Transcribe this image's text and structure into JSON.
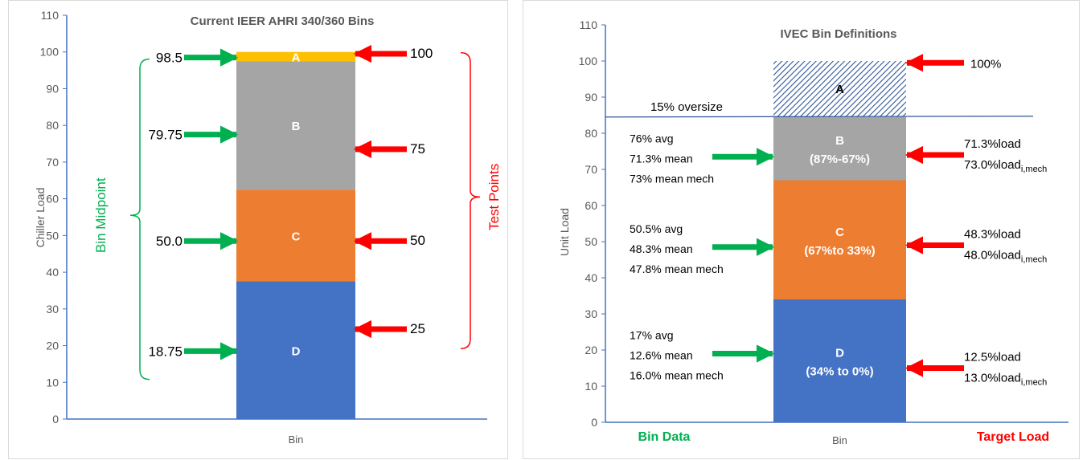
{
  "chart_data": [
    {
      "type": "bar",
      "title": "Current IEER AHRI 340/360 Bins",
      "xlabel": "Bin",
      "ylabel": "Chiller Load",
      "ylim": [
        0,
        110
      ],
      "yticks": [
        "0",
        "10",
        "20",
        "30",
        "40",
        "50",
        "60",
        "70",
        "80",
        "90",
        "100",
        "110"
      ],
      "categories": [
        "Bin"
      ],
      "series": [
        {
          "name": "D",
          "value": 37.5,
          "color": "#4472c4"
        },
        {
          "name": "C",
          "value": 25,
          "color": "#ed7d31"
        },
        {
          "name": "B",
          "value": 35,
          "color": "#a5a5a5"
        },
        {
          "name": "A",
          "value": 2.5,
          "color": "#ffc000"
        }
      ],
      "left_brace_label": "Bin Midpoint",
      "right_brace_label": "Test Points",
      "left_markers": [
        {
          "label": "98.5",
          "y": 98.5
        },
        {
          "label": "79.75",
          "y": 77.5
        },
        {
          "label": "50.0",
          "y": 48.5
        },
        {
          "label": "18.75",
          "y": 18.5
        }
      ],
      "right_markers": [
        {
          "label": "100",
          "y": 99.5
        },
        {
          "label": "75",
          "y": 73.5
        },
        {
          "label": "50",
          "y": 48.5
        },
        {
          "label": "25",
          "y": 24.5
        }
      ]
    },
    {
      "type": "bar",
      "title": "IVEC Bin Definitions",
      "xlabel": "Bin",
      "ylabel": "Unit Load",
      "ylim": [
        0,
        110
      ],
      "yticks": [
        "0",
        "10",
        "20",
        "30",
        "40",
        "50",
        "60",
        "70",
        "80",
        "90",
        "100",
        "110"
      ],
      "categories": [
        "Bin"
      ],
      "series": [
        {
          "name": "D",
          "label": "(34% to 0%)",
          "value": 34,
          "color": "#4472c4"
        },
        {
          "name": "C",
          "label": "(67%to 33%)",
          "value": 33,
          "color": "#ed7d31"
        },
        {
          "name": "B",
          "label": "(87%-67%)",
          "value": 17.5,
          "color": "#a5a5a5"
        },
        {
          "name": "A",
          "label": "",
          "value": 15.5,
          "color": "#2e5597",
          "pattern": "hatched"
        }
      ],
      "oversize_line": {
        "label": "15% oversize",
        "y": 84.5
      },
      "left_caption": "Bin Data",
      "right_caption": "Target Load",
      "left_markers": [
        {
          "y": 73.5,
          "lines": [
            "76% avg",
            "71.3% mean",
            "73% mean mech"
          ]
        },
        {
          "y": 48.5,
          "lines": [
            "50.5% avg",
            "48.3% mean",
            "47.8% mean mech"
          ]
        },
        {
          "y": 19,
          "lines": [
            "17% avg",
            "12.6% mean",
            "16.0% mean mech"
          ]
        }
      ],
      "right_markers": [
        {
          "y": 99.5,
          "label": "100%"
        },
        {
          "y": 74,
          "load": "71.3%load",
          "mech": "73.0%load",
          "mech_sub": "i,mech"
        },
        {
          "y": 49,
          "load": "48.3%load",
          "mech": "48.0%load",
          "mech_sub": "i,mech"
        },
        {
          "y": 15,
          "load": "12.5%load",
          "mech": "13.0%load",
          "mech_sub": "i,mech"
        }
      ]
    }
  ]
}
